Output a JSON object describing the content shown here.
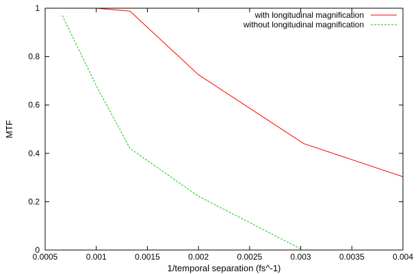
{
  "chart_data": {
    "type": "line",
    "title": "",
    "xlabel": "1/temporal separation (fs^-1)",
    "ylabel": "MTF",
    "xlim": [
      0.0005,
      0.004
    ],
    "ylim": [
      0,
      1
    ],
    "xticks": [
      0.0005,
      0.001,
      0.0015,
      0.002,
      0.0025,
      0.003,
      0.0035,
      0.004
    ],
    "xtick_labels": [
      "0.0005",
      "0.001",
      "0.0015",
      "0.002",
      "0.0025",
      "0.003",
      "0.0035",
      "0.004"
    ],
    "yticks": [
      0,
      0.2,
      0.4,
      0.6,
      0.8,
      1
    ],
    "ytick_labels": [
      "0",
      "0.2",
      "0.4",
      "0.6",
      "0.8",
      "1"
    ],
    "grid": false,
    "legend_position": "top-right",
    "series": [
      {
        "name": "with longitudinal magnification",
        "color": "#ff0000",
        "dash": "solid",
        "points": [
          [
            0.001,
            1.0
          ],
          [
            0.00133,
            0.988
          ],
          [
            0.002,
            0.725
          ],
          [
            0.00303,
            0.44
          ],
          [
            0.004,
            0.303
          ]
        ]
      },
      {
        "name": "without longitudinal magnification",
        "color": "#00cc00",
        "dash": "dashed",
        "points": [
          [
            0.000667,
            0.97
          ],
          [
            0.001,
            0.68
          ],
          [
            0.00133,
            0.42
          ],
          [
            0.002,
            0.222
          ],
          [
            0.003,
            0.005
          ]
        ]
      }
    ]
  }
}
